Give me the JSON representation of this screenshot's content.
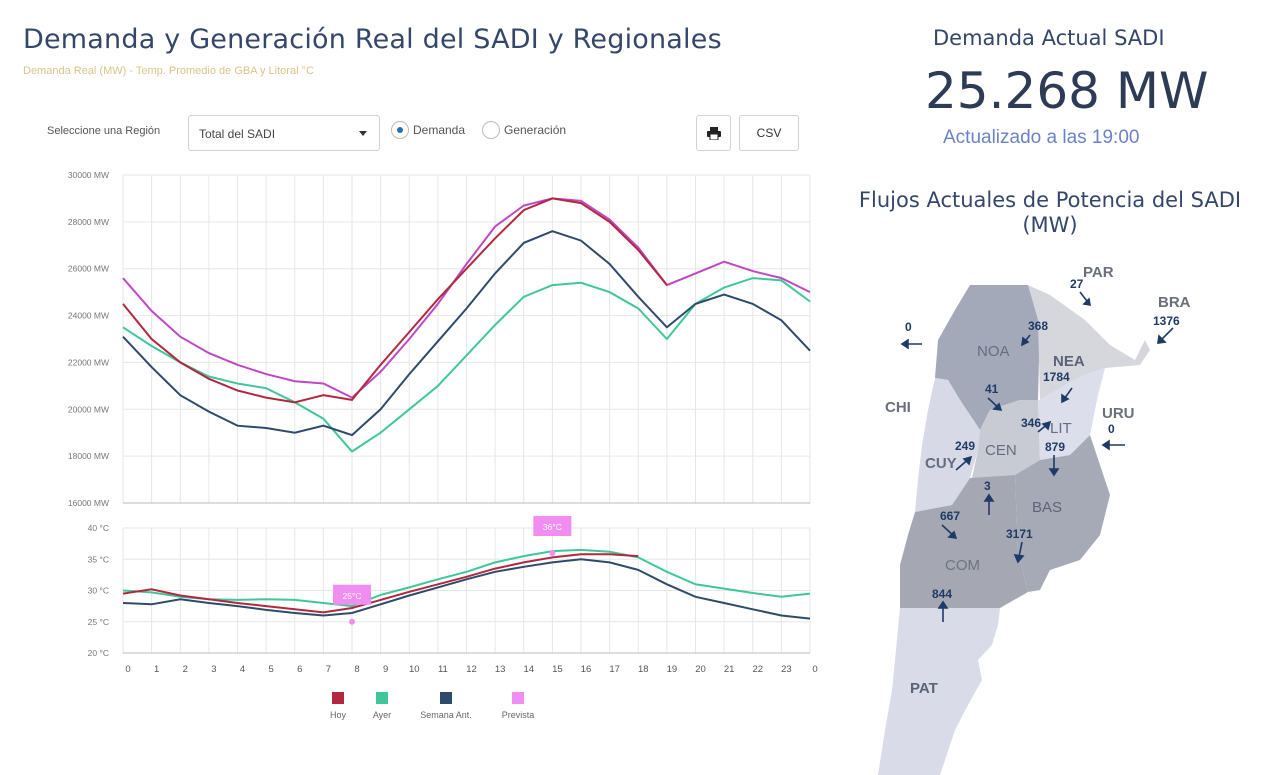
{
  "header": {
    "title": "Demanda y Generación Real del SADI y Regionales",
    "subtitle": "Demanda Real (MW) - Temp. Promedio de GBA y Litoral °C"
  },
  "controls": {
    "region_label": "Seleccione una Región",
    "region_value": "Total del SADI",
    "radio_demanda": "Demanda",
    "radio_generacion": "Generación",
    "print_icon": "print-icon",
    "csv_label": "CSV"
  },
  "summary": {
    "title": "Demanda Actual SADI",
    "value": "25.268 MW",
    "updated": "Actualizado a las 19:00"
  },
  "flows": {
    "title": "Flujos Actuales de Potencia del SADI",
    "subtitle": "(MW)",
    "regions": [
      "NOA",
      "NEA",
      "CEN",
      "LIT",
      "CUY",
      "BAS",
      "COM",
      "PAT"
    ],
    "countries": [
      "PAR",
      "BRA",
      "CHI",
      "URU"
    ],
    "values": {
      "PAR": "27",
      "BRA": "1376",
      "CHI": "0",
      "URU": "0",
      "NOA_NEA": "368",
      "NEA_LIT": "1784",
      "NOA_CEN": "41",
      "CEN_LIT": "346",
      "LIT_BAS": "879",
      "CUY_CEN": "249",
      "CEN_COM": "3",
      "CUY_COM": "667",
      "BAS_COM": "3171",
      "COM_PAT": "844"
    }
  },
  "chart_data": {
    "type": "line",
    "x": [
      0,
      1,
      2,
      3,
      4,
      5,
      6,
      7,
      8,
      9,
      10,
      11,
      12,
      13,
      14,
      15,
      16,
      17,
      18,
      19,
      20,
      21,
      22,
      23,
      24
    ],
    "x_tick_labels": [
      "0",
      "1",
      "2",
      "3",
      "4",
      "5",
      "6",
      "7",
      "8",
      "9",
      "10",
      "11",
      "12",
      "13",
      "14",
      "15",
      "16",
      "17",
      "18",
      "19",
      "20",
      "21",
      "22",
      "23",
      "0"
    ],
    "demand": {
      "ylim": [
        16000,
        30000
      ],
      "y_ticks": [
        16000,
        18000,
        20000,
        22000,
        24000,
        26000,
        28000,
        30000
      ],
      "y_tick_labels": [
        "16000 MW",
        "18000 MW",
        "20000 MW",
        "22000 MW",
        "24000 MW",
        "26000 MW",
        "28000 MW",
        "30000 MW"
      ],
      "series": [
        {
          "name": "Hoy",
          "color": "#b2283f",
          "values": [
            24500,
            23000,
            22000,
            21300,
            20800,
            20500,
            20300,
            20600,
            20400,
            21900,
            23300,
            24700,
            26000,
            27300,
            28500,
            29000,
            28800,
            28000,
            26800,
            25300,
            null,
            null,
            null,
            null,
            null
          ]
        },
        {
          "name": "Ayer",
          "color": "#3ec79a",
          "values": [
            23500,
            22700,
            22000,
            21400,
            21100,
            20900,
            20300,
            19600,
            18200,
            19000,
            20000,
            21000,
            22300,
            23600,
            24800,
            25300,
            25400,
            25000,
            24300,
            23000,
            24500,
            25200,
            25600,
            25500,
            24600
          ]
        },
        {
          "name": "Semana Ant.",
          "color": "#2e4b6c",
          "values": [
            23100,
            21800,
            20600,
            19900,
            19300,
            19200,
            19000,
            19300,
            18900,
            20000,
            21500,
            22900,
            24300,
            25800,
            27100,
            27600,
            27200,
            26200,
            24800,
            23500,
            24500,
            24900,
            24500,
            23800,
            22500
          ]
        },
        {
          "name": "Prevista",
          "color": "#bf48c4",
          "values": [
            25600,
            24200,
            23100,
            22400,
            21900,
            21500,
            21200,
            21100,
            20500,
            21600,
            23000,
            24500,
            26200,
            27800,
            28700,
            29000,
            28900,
            28100,
            26900,
            25300,
            25800,
            26300,
            25900,
            25600,
            25000
          ]
        }
      ]
    },
    "temperature": {
      "ylim": [
        20,
        40
      ],
      "y_ticks": [
        20,
        25,
        30,
        35,
        40
      ],
      "y_tick_labels": [
        "20 °C",
        "25 °C",
        "30 °C",
        "35 °C",
        "40 °C"
      ],
      "series": [
        {
          "name": "Hoy",
          "color": "#b2283f",
          "values": [
            29.5,
            30.2,
            29.2,
            28.6,
            28.0,
            27.5,
            27.0,
            26.5,
            27.2,
            28.5,
            29.8,
            31.0,
            32.2,
            33.5,
            34.5,
            35.3,
            35.8,
            35.8,
            35.5,
            null,
            null,
            null,
            null,
            null,
            null
          ]
        },
        {
          "name": "Ayer",
          "color": "#3ec79a",
          "values": [
            30.0,
            29.7,
            29.0,
            28.6,
            28.5,
            28.6,
            28.5,
            28.0,
            27.5,
            29.3,
            30.5,
            31.8,
            33.0,
            34.5,
            35.5,
            36.3,
            36.5,
            36.2,
            35.3,
            33.0,
            31.0,
            30.3,
            29.6,
            29.0,
            29.5
          ]
        },
        {
          "name": "Semana Ant.",
          "color": "#2e4b6c",
          "values": [
            28.0,
            27.8,
            28.6,
            28.0,
            27.5,
            26.9,
            26.4,
            26.0,
            26.4,
            27.8,
            29.2,
            30.5,
            31.8,
            33.0,
            33.8,
            34.5,
            35.0,
            34.5,
            33.3,
            31.0,
            29.0,
            28.0,
            27.0,
            26.0,
            25.5
          ]
        }
      ],
      "markers": [
        {
          "label": "25°C",
          "x": 8,
          "value": 25,
          "color": "#ef8ef0"
        },
        {
          "label": "36°C",
          "x": 15,
          "value": 36,
          "color": "#ef8ef0"
        }
      ]
    },
    "legend": [
      {
        "label": "Hoy",
        "color": "#b2283f"
      },
      {
        "label": "Ayer",
        "color": "#3ec79a"
      },
      {
        "label": "Semana Ant.",
        "color": "#2e4b6c"
      },
      {
        "label": "Prevista",
        "color": "#f08ef4"
      }
    ]
  }
}
